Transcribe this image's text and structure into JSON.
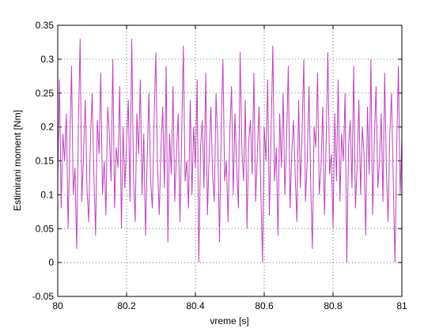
{
  "chart_data": {
    "type": "line",
    "xlabel": "vreme [s]",
    "ylabel": "Estimirani moment [Nm]",
    "xlim": [
      80,
      81
    ],
    "xticks": [
      80,
      80.2,
      80.4,
      80.6,
      80.8,
      81
    ],
    "ylim": [
      -0.05,
      0.35
    ],
    "yticks": [
      -0.05,
      0,
      0.05,
      0.1,
      0.15,
      0.2,
      0.25,
      0.3,
      0.35
    ],
    "grid": true,
    "x": [
      80,
      80.005,
      80.01,
      80.015,
      80.02,
      80.025,
      80.03,
      80.035,
      80.04,
      80.045,
      80.05,
      80.055,
      80.06,
      80.065,
      80.07,
      80.075,
      80.08,
      80.085,
      80.09,
      80.095,
      80.1,
      80.105,
      80.11,
      80.115,
      80.12,
      80.125,
      80.13,
      80.135,
      80.14,
      80.145,
      80.15,
      80.155,
      80.16,
      80.165,
      80.17,
      80.175,
      80.18,
      80.185,
      80.19,
      80.195,
      80.2,
      80.205,
      80.21,
      80.215,
      80.22,
      80.225,
      80.23,
      80.235,
      80.24,
      80.245,
      80.25,
      80.255,
      80.26,
      80.265,
      80.27,
      80.275,
      80.28,
      80.285,
      80.29,
      80.295,
      80.3,
      80.305,
      80.31,
      80.315,
      80.32,
      80.325,
      80.33,
      80.335,
      80.34,
      80.345,
      80.35,
      80.355,
      80.36,
      80.365,
      80.37,
      80.375,
      80.38,
      80.385,
      80.39,
      80.395,
      80.4,
      80.405,
      80.41,
      80.415,
      80.42,
      80.425,
      80.43,
      80.435,
      80.44,
      80.445,
      80.45,
      80.455,
      80.46,
      80.465,
      80.47,
      80.475,
      80.48,
      80.485,
      80.49,
      80.495,
      80.5,
      80.505,
      80.51,
      80.515,
      80.52,
      80.525,
      80.53,
      80.535,
      80.54,
      80.545,
      80.55,
      80.555,
      80.56,
      80.565,
      80.57,
      80.575,
      80.58,
      80.585,
      80.59,
      80.595,
      80.6,
      80.605,
      80.61,
      80.615,
      80.62,
      80.625,
      80.63,
      80.635,
      80.64,
      80.645,
      80.65,
      80.655,
      80.66,
      80.665,
      80.67,
      80.675,
      80.68,
      80.685,
      80.69,
      80.695,
      80.7,
      80.705,
      80.71,
      80.715,
      80.72,
      80.725,
      80.73,
      80.735,
      80.74,
      80.745,
      80.75,
      80.755,
      80.76,
      80.765,
      80.77,
      80.775,
      80.78,
      80.785,
      80.79,
      80.795,
      80.8,
      80.805,
      80.81,
      80.815,
      80.82,
      80.825,
      80.83,
      80.835,
      80.84,
      80.845,
      80.85,
      80.855,
      80.86,
      80.865,
      80.87,
      80.875,
      80.88,
      80.885,
      80.89,
      80.895,
      80.9,
      80.905,
      80.91,
      80.915,
      80.92,
      80.925,
      80.93,
      80.935,
      80.94,
      80.945,
      80.95,
      80.955,
      80.96,
      80.965,
      80.97,
      80.975,
      80.98,
      80.985,
      80.99,
      80.995,
      81
    ],
    "series": [
      {
        "color": "#c040c0",
        "values": [
          0.12,
          0.27,
          0.08,
          0.19,
          0.15,
          0.22,
          0.05,
          0.17,
          0.29,
          0.1,
          0.14,
          0.02,
          0.2,
          0.33,
          0.09,
          0.16,
          0.24,
          0.11,
          0.06,
          0.18,
          0.25,
          0.13,
          0.04,
          0.21,
          0.16,
          0.28,
          0.1,
          0.15,
          0.07,
          0.23,
          0.19,
          0.12,
          0.3,
          0.08,
          0.17,
          0.14,
          0.26,
          0.05,
          0.2,
          0.11,
          0.18,
          0.24,
          0.09,
          0.33,
          0.13,
          0.06,
          0.22,
          0.16,
          0.27,
          0.1,
          0.19,
          0.04,
          0.15,
          0.25,
          0.12,
          0.08,
          0.21,
          0.31,
          0.14,
          0.07,
          0.17,
          0.23,
          0.11,
          0.29,
          0.03,
          0.19,
          0.13,
          0.26,
          0.09,
          0.16,
          0.22,
          0.06,
          0.18,
          0.32,
          0.12,
          0.15,
          0.08,
          0.24,
          0.1,
          0.2,
          0.14,
          0.27,
          0.0,
          0.17,
          0.21,
          0.11,
          0.28,
          0.07,
          0.16,
          0.23,
          0.13,
          0.09,
          0.25,
          0.18,
          0.03,
          0.2,
          0.3,
          0.12,
          0.15,
          0.06,
          0.19,
          0.26,
          0.1,
          0.22,
          0.14,
          0.08,
          0.31,
          0.17,
          0.12,
          0.24,
          0.05,
          0.18,
          0.21,
          0.13,
          0.28,
          0.09,
          0.16,
          0.23,
          0.11,
          0.0,
          0.2,
          0.15,
          0.27,
          0.07,
          0.19,
          0.32,
          0.12,
          0.17,
          0.04,
          0.22,
          0.14,
          0.25,
          0.1,
          0.18,
          0.29,
          0.08,
          0.16,
          0.21,
          0.13,
          0.06,
          0.24,
          0.11,
          0.19,
          0.3,
          0.09,
          0.15,
          0.26,
          0.12,
          0.02,
          0.2,
          0.17,
          0.28,
          0.1,
          0.14,
          0.23,
          0.07,
          0.18,
          0.31,
          0.13,
          0.16,
          0.05,
          0.22,
          0.12,
          0.27,
          0.09,
          0.19,
          0.15,
          0.25,
          0.0,
          0.17,
          0.21,
          0.11,
          0.29,
          0.08,
          0.14,
          0.24,
          0.1,
          0.2,
          0.16,
          0.04,
          0.23,
          0.13,
          0.3,
          0.07,
          0.18,
          0.26,
          0.11,
          0.15,
          0.22,
          0.09,
          0.28,
          0.14,
          0.06,
          0.19,
          0.25,
          0.12,
          0.0,
          0.17,
          0.29,
          0.1,
          0.18
        ]
      }
    ]
  }
}
